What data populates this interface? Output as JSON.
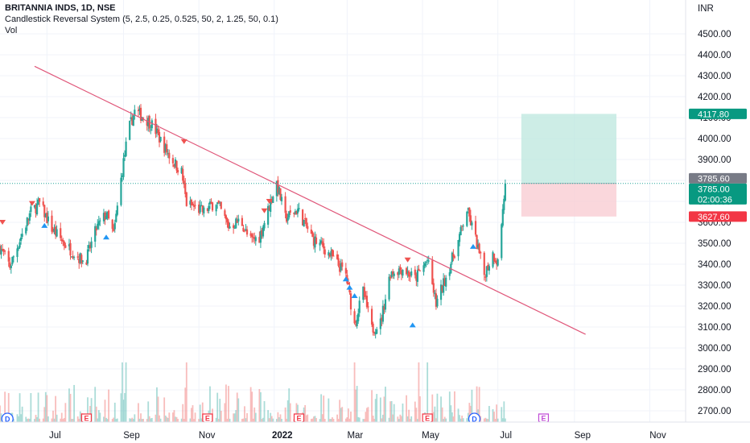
{
  "legend": {
    "symbol": "BRITANNIA INDS, 1D, NSE",
    "indicator": "Candlestick Reversal System (5, 2.5, 0.25, 0.525, 50, 2, 1.25, 50, 0.1)",
    "volume_label": "Vol"
  },
  "axis": {
    "currency": "INR",
    "price_ticks": [
      "4500.00",
      "4400.00",
      "4300.00",
      "4200.00",
      "4100.00",
      "4000.00",
      "3900.00",
      "3800.00",
      "3700.00",
      "3600.00",
      "3500.00",
      "3400.00",
      "3300.00",
      "3200.00",
      "3100.00",
      "3000.00",
      "2900.00",
      "2800.00",
      "2700.00"
    ],
    "time_ticks": [
      "Jul",
      "Sep",
      "Nov",
      "2022",
      "Mar",
      "May",
      "Jul",
      "Sep",
      "Nov"
    ]
  },
  "price_tags": {
    "target": "4117.80",
    "prev_close": "3785.60",
    "last": "3785.00",
    "countdown": "02:00:36",
    "stop": "3627.60"
  },
  "colors": {
    "up": "#26a69a",
    "down": "#ef5350",
    "trendline": "#e0577a",
    "target_zone": "#b8e6dc",
    "stop_zone": "#f9cdd3",
    "tag_green": "#089981",
    "tag_gray": "#787b86",
    "tag_red": "#f23645",
    "signal_down": "#ef5350",
    "signal_up": "#2196f3"
  },
  "chart_data": {
    "type": "candlestick",
    "title": "BRITANNIA INDS, 1D, NSE",
    "y_unit": "INR",
    "ylim": [
      2650,
      4580
    ],
    "grid": true,
    "x_range": [
      "2021-05-24",
      "2022-11-30"
    ],
    "price_path": [
      [
        "2021-05-24",
        3480
      ],
      [
        "2021-06-01",
        3390
      ],
      [
        "2021-06-10",
        3530
      ],
      [
        "2021-06-18",
        3650
      ],
      [
        "2021-06-25",
        3690
      ],
      [
        "2021-07-05",
        3570
      ],
      [
        "2021-07-15",
        3500
      ],
      [
        "2021-07-25",
        3440
      ],
      [
        "2021-08-01",
        3410
      ],
      [
        "2021-08-10",
        3570
      ],
      [
        "2021-08-18",
        3640
      ],
      [
        "2021-08-24",
        3540
      ],
      [
        "2021-08-31",
        3850
      ],
      [
        "2021-09-05",
        4040
      ],
      [
        "2021-09-10",
        4130
      ],
      [
        "2021-09-18",
        4100
      ],
      [
        "2021-09-25",
        4060
      ],
      [
        "2021-10-01",
        3990
      ],
      [
        "2021-10-10",
        3900
      ],
      [
        "2021-10-18",
        3840
      ],
      [
        "2021-10-22",
        3690
      ],
      [
        "2021-11-05",
        3650
      ],
      [
        "2021-11-15",
        3700
      ],
      [
        "2021-11-25",
        3580
      ],
      [
        "2021-12-05",
        3610
      ],
      [
        "2021-12-12",
        3510
      ],
      [
        "2021-12-20",
        3530
      ],
      [
        "2021-12-26",
        3640
      ],
      [
        "2022-01-03",
        3790
      ],
      [
        "2022-01-10",
        3620
      ],
      [
        "2022-01-20",
        3660
      ],
      [
        "2022-02-01",
        3520
      ],
      [
        "2022-02-10",
        3480
      ],
      [
        "2022-02-20",
        3410
      ],
      [
        "2022-02-28",
        3350
      ],
      [
        "2022-03-07",
        3110
      ],
      [
        "2022-03-14",
        3270
      ],
      [
        "2022-03-21",
        3090
      ],
      [
        "2022-03-28",
        3120
      ],
      [
        "2022-04-05",
        3360
      ],
      [
        "2022-04-15",
        3380
      ],
      [
        "2022-04-25",
        3330
      ],
      [
        "2022-05-05",
        3420
      ],
      [
        "2022-05-12",
        3210
      ],
      [
        "2022-05-20",
        3340
      ],
      [
        "2022-05-30",
        3510
      ],
      [
        "2022-06-06",
        3660
      ],
      [
        "2022-06-13",
        3520
      ],
      [
        "2022-06-20",
        3350
      ],
      [
        "2022-06-27",
        3450
      ],
      [
        "2022-07-01",
        3410
      ],
      [
        "2022-07-05",
        3660
      ],
      [
        "2022-07-07",
        3785
      ]
    ],
    "trendline": [
      [
        "2021-06-21",
        4345
      ],
      [
        "2022-09-10",
        3065
      ]
    ],
    "position": {
      "entry": 3785.6,
      "target": 4117.8,
      "stop": 3627.6,
      "from": "2022-07-20",
      "to": "2022-10-05"
    },
    "signals": [
      {
        "date": "2021-05-26",
        "price": 3600,
        "type": "down"
      },
      {
        "date": "2021-06-19",
        "price": 3690,
        "type": "down"
      },
      {
        "date": "2021-06-29",
        "price": 3585,
        "type": "up"
      },
      {
        "date": "2021-08-18",
        "price": 3530,
        "type": "up"
      },
      {
        "date": "2021-10-20",
        "price": 3985,
        "type": "down"
      },
      {
        "date": "2021-12-24",
        "price": 3655,
        "type": "down"
      },
      {
        "date": "2021-12-28",
        "price": 3700,
        "type": "down"
      },
      {
        "date": "2022-02-28",
        "price": 3330,
        "type": "up"
      },
      {
        "date": "2022-03-03",
        "price": 3290,
        "type": "up"
      },
      {
        "date": "2022-03-07",
        "price": 3250,
        "type": "up"
      },
      {
        "date": "2022-04-19",
        "price": 3420,
        "type": "down"
      },
      {
        "date": "2022-04-23",
        "price": 3110,
        "type": "up"
      },
      {
        "date": "2022-06-11",
        "price": 3485,
        "type": "up"
      }
    ],
    "events": [
      {
        "date": "2021-05-30",
        "type": "D"
      },
      {
        "date": "2021-08-02",
        "type": "E"
      },
      {
        "date": "2021-11-08",
        "type": "E"
      },
      {
        "date": "2022-01-21",
        "type": "E"
      },
      {
        "date": "2022-05-05",
        "type": "E"
      },
      {
        "date": "2022-06-12",
        "type": "D"
      },
      {
        "date": "2022-08-07",
        "type": "E",
        "future": true
      }
    ],
    "last_price": 3785.0
  }
}
